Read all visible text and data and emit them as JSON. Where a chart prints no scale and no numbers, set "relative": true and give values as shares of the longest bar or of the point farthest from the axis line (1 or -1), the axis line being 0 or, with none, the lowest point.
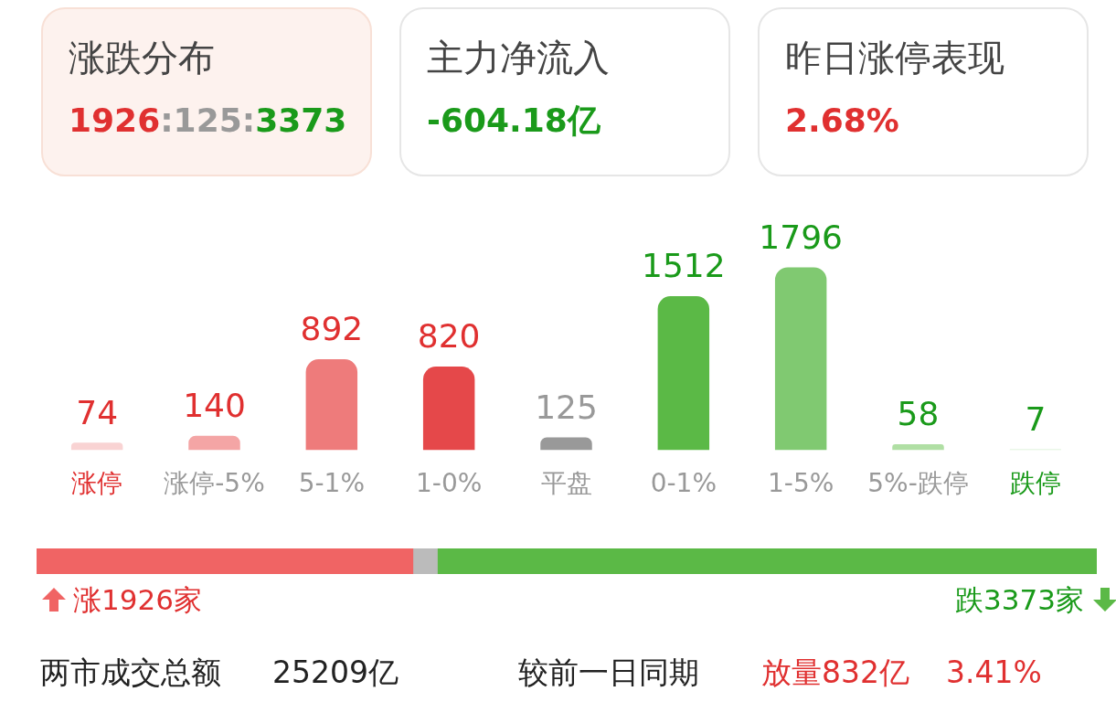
{
  "chart_data": [
    {
      "type": "other",
      "title": "涨跌分布",
      "annotations": [
        "1926:125:3373"
      ]
    },
    {
      "type": "other",
      "title": "主力净流入",
      "annotations": [
        "-604.18亿"
      ]
    },
    {
      "type": "other",
      "title": "昨日涨停表现",
      "annotations": [
        "2.68%"
      ]
    },
    {
      "type": "bar",
      "categories": [
        "涨停",
        "涨停-5%",
        "5-1%",
        "1-0%",
        "平盘",
        "0-1%",
        "1-5%",
        "5%-跌停",
        "跌停"
      ],
      "values": [
        74,
        140,
        892,
        820,
        125,
        1512,
        1796,
        58,
        7
      ],
      "colors": [
        "#f9d3d3",
        "#f4a5a5",
        "#ee7b7b",
        "#e5484a",
        "#999999",
        "#5bb946",
        "#80c971",
        "#b0dfa4",
        "#d6efd0"
      ],
      "data_labels": true
    },
    {
      "type": "bar",
      "orientation": "horizontal",
      "stacked": true,
      "categories": [
        null
      ],
      "relative": true,
      "series": [
        {
          "color": "#f06464",
          "values": [
            0.355
          ]
        },
        {
          "color": "#bbbbbb",
          "values": [
            0.023
          ]
        },
        {
          "color": "#5bb946",
          "values": [
            0.622
          ]
        }
      ],
      "annotations": [
        "涨1926家",
        "跌3373家"
      ]
    },
    {
      "type": "other",
      "annotations": [
        "两市成交总额",
        "25209亿",
        "较前一日同期",
        "放量832亿",
        "3.41%"
      ]
    }
  ]
}
